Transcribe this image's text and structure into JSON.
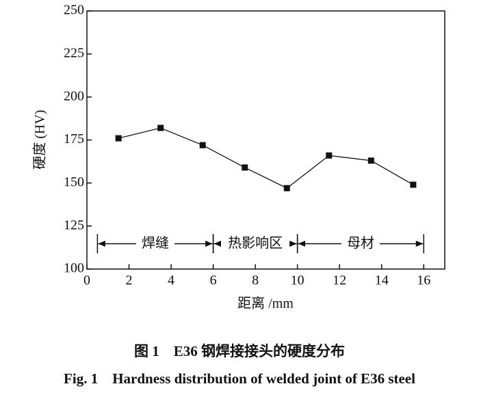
{
  "chart_data": {
    "type": "line",
    "x_label": "距离 /mm",
    "y_label": "硬度 (HV)",
    "caption_zh": "图 1　E36 钢焊接接头的硬度分布",
    "caption_en": "Fig. 1　Hardness distribution of welded joint of E36 steel",
    "x": [
      1.5,
      3.5,
      5.5,
      7.5,
      9.5,
      11.5,
      13.5,
      15.5
    ],
    "series": [
      {
        "name": "硬度",
        "color": "#111111",
        "values": [
          176,
          182,
          172,
          159,
          147,
          166,
          163,
          149
        ]
      }
    ],
    "xlim": [
      0,
      17
    ],
    "xticks": [
      0,
      2,
      4,
      6,
      8,
      10,
      12,
      14,
      16
    ],
    "ylim": [
      100,
      250
    ],
    "yticks": [
      100,
      125,
      150,
      175,
      200,
      225,
      250
    ],
    "regions": [
      {
        "label": "焊缝",
        "start": 0.5,
        "end": 6
      },
      {
        "label": "热影响区",
        "start": 6,
        "end": 10
      },
      {
        "label": "母材",
        "start": 10,
        "end": 16
      }
    ]
  }
}
